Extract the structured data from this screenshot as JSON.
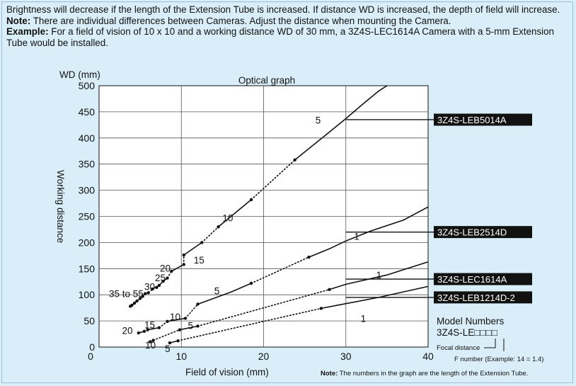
{
  "intro": {
    "line1": "Brightness will decrease if the length of the Extension Tube is increased. If distance WD is increased, the depth of field will increase.",
    "note_label": "Note:",
    "note_text": " There are individual differences between Cameras. Adjust the distance when mounting the Camera.",
    "example_label": "Example:",
    "example_text": " For a field of vision of 10 x 10 and a working distance WD of 30 mm, a 3Z4S-LEC1614A Camera with a 5-mm Extension Tube would be installed."
  },
  "model_numbers": {
    "title": "Model Numbers",
    "code": "3Z4S-LE□□□□",
    "focal": "Focal distance",
    "fnumber": "F number (Example: 14 = 1.4)"
  },
  "footnote": {
    "label": "Note:",
    "text": " The numbers in the graph are the length of the Extension Tube."
  },
  "colors": {
    "background": "#d9eef8",
    "plot": "#ffffff",
    "line": "#111111",
    "label_box": "#111111"
  },
  "chart_data": {
    "type": "line",
    "title": "Optical graph",
    "xlabel": "Field of vision (mm)",
    "ylabel": "Working distance",
    "yunit": "WD (mm)",
    "xlim": [
      0,
      40
    ],
    "ylim": [
      0,
      500
    ],
    "xticks": [
      10,
      20,
      30,
      40
    ],
    "x_zero_label": "0",
    "yticks": [
      0,
      50,
      100,
      150,
      200,
      250,
      300,
      350,
      400,
      450,
      500
    ],
    "grid": true,
    "series": [
      {
        "name": "3Z4S-LEB5014A",
        "label_y": 435,
        "solid": [
          [
            [
              3.8,
              78
            ],
            [
              4.0,
              80
            ],
            [
              4.3,
              84
            ],
            [
              4.6,
              88
            ],
            [
              5.0,
              93
            ],
            [
              5.6,
              102
            ],
            [
              6.0,
              104
            ]
          ],
          [
            [
              6.5,
              111
            ],
            [
              7.3,
              118
            ],
            [
              7.8,
              126
            ],
            [
              8.3,
              132
            ]
          ],
          [
            [
              8.8,
              145
            ],
            [
              10.3,
              158
            ]
          ],
          [
            [
              10.3,
              176
            ],
            [
              12.5,
              200
            ]
          ],
          [
            [
              14.5,
              230
            ],
            [
              18.5,
              282
            ]
          ],
          [
            [
              23.8,
              358
            ],
            [
              27.5,
              405
            ],
            [
              30.0,
              437
            ],
            [
              32.0,
              464
            ],
            [
              34.0,
              490
            ],
            [
              35.0,
              500
            ]
          ]
        ],
        "dotted": [
          [
            [
              6.0,
              104
            ],
            [
              6.5,
              111
            ]
          ],
          [
            [
              8.3,
              132
            ],
            [
              8.8,
              145
            ]
          ],
          [
            [
              10.3,
              158
            ],
            [
              10.3,
              176
            ]
          ],
          [
            [
              12.5,
              200
            ],
            [
              14.5,
              230
            ]
          ],
          [
            [
              18.5,
              282
            ],
            [
              23.8,
              358
            ]
          ]
        ],
        "markers": [
          [
            3.8,
            78
          ],
          [
            4.0,
            80
          ],
          [
            4.3,
            84
          ],
          [
            4.6,
            88
          ],
          [
            5.0,
            93
          ],
          [
            5.3,
            97
          ],
          [
            5.6,
            102
          ],
          [
            6.0,
            104
          ],
          [
            6.5,
            111
          ],
          [
            7.0,
            114
          ],
          [
            7.3,
            118
          ],
          [
            7.8,
            126
          ],
          [
            8.3,
            132
          ],
          [
            8.8,
            145
          ],
          [
            10.3,
            158
          ],
          [
            10.3,
            176
          ],
          [
            12.5,
            200
          ],
          [
            14.5,
            230
          ],
          [
            18.5,
            282
          ],
          [
            23.8,
            358
          ]
        ]
      },
      {
        "name": "3Z4S-LEB2514D",
        "label_y": 220,
        "solid": [
          [
            [
              4.8,
              27
            ],
            [
              5.5,
              30
            ]
          ],
          [
            [
              5.9,
              33
            ],
            [
              7.3,
              37
            ]
          ],
          [
            [
              8.3,
              49
            ],
            [
              10.5,
              55
            ]
          ],
          [
            [
              12.0,
              82
            ],
            [
              16.0,
              105
            ],
            [
              18.5,
              122
            ]
          ],
          [
            [
              25.5,
              172
            ],
            [
              28.0,
              188
            ],
            [
              30.0,
              203
            ],
            [
              33.0,
              222
            ],
            [
              37.0,
              243
            ],
            [
              40.0,
              268
            ]
          ]
        ],
        "dotted": [
          [
            [
              5.5,
              30
            ],
            [
              5.9,
              33
            ]
          ],
          [
            [
              7.3,
              37
            ],
            [
              8.3,
              49
            ]
          ],
          [
            [
              10.5,
              55
            ],
            [
              12.0,
              82
            ]
          ],
          [
            [
              18.5,
              122
            ],
            [
              25.5,
              172
            ]
          ]
        ],
        "markers": [
          [
            4.8,
            27
          ],
          [
            5.5,
            30
          ],
          [
            5.9,
            33
          ],
          [
            7.3,
            37
          ],
          [
            8.3,
            49
          ],
          [
            10.5,
            55
          ],
          [
            12.0,
            82
          ],
          [
            18.5,
            122
          ],
          [
            25.5,
            172
          ]
        ]
      },
      {
        "name": "3Z4S-LEC1614A",
        "label_y": 130,
        "solid": [
          [
            [
              6.2,
              10
            ],
            [
              6.6,
              13
            ]
          ],
          [
            [
              9.8,
              33
            ],
            [
              12.0,
              40
            ]
          ],
          [
            [
              28.0,
              110
            ],
            [
              30.0,
              120
            ],
            [
              35.0,
              138
            ],
            [
              40.0,
              163
            ]
          ]
        ],
        "dotted": [
          [
            [
              6.6,
              13
            ],
            [
              9.8,
              33
            ]
          ],
          [
            [
              12.0,
              40
            ],
            [
              28.0,
              110
            ]
          ]
        ],
        "markers": [
          [
            6.2,
            10
          ],
          [
            6.6,
            13
          ],
          [
            9.8,
            33
          ],
          [
            12.0,
            40
          ],
          [
            28.0,
            110
          ]
        ]
      },
      {
        "name": "3Z4S-LEB1214D-2",
        "label_y": 95,
        "solid": [
          [
            [
              8.6,
              8
            ],
            [
              9.6,
              12
            ]
          ],
          [
            [
              27.0,
              74
            ],
            [
              30.0,
              83
            ],
            [
              34.0,
              95
            ],
            [
              40.0,
              116
            ]
          ]
        ],
        "dotted": [
          [
            [
              9.6,
              12
            ],
            [
              27.0,
              74
            ]
          ]
        ],
        "markers": [
          [
            8.6,
            8
          ],
          [
            9.6,
            12
          ],
          [
            27.0,
            74
          ]
        ]
      }
    ],
    "annotations": [
      {
        "text": "35 to 55",
        "x": 1.2,
        "y": 102
      },
      {
        "text": "30",
        "x": 5.5,
        "y": 116
      },
      {
        "text": "25",
        "x": 6.8,
        "y": 133
      },
      {
        "text": "20",
        "x": 7.4,
        "y": 151
      },
      {
        "text": "15",
        "x": 11.5,
        "y": 167
      },
      {
        "text": "10",
        "x": 15.0,
        "y": 247
      },
      {
        "text": "5",
        "x": 26.3,
        "y": 434
      },
      {
        "text": "20",
        "x": 2.8,
        "y": 32
      },
      {
        "text": "15",
        "x": 5.5,
        "y": 43
      },
      {
        "text": "10",
        "x": 8.6,
        "y": 58
      },
      {
        "text": "5",
        "x": 14.0,
        "y": 108
      },
      {
        "text": "1",
        "x": 31.0,
        "y": 212
      },
      {
        "text": "10",
        "x": 5.6,
        "y": 4
      },
      {
        "text": "5",
        "x": 10.8,
        "y": 41
      },
      {
        "text": "1",
        "x": 33.7,
        "y": 138
      },
      {
        "text": "5",
        "x": 8.0,
        "y": -3
      },
      {
        "text": "1",
        "x": 31.8,
        "y": 55
      }
    ]
  }
}
